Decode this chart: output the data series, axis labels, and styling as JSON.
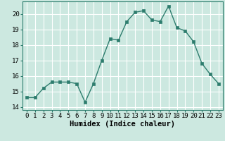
{
  "x": [
    0,
    1,
    2,
    3,
    4,
    5,
    6,
    7,
    8,
    9,
    10,
    11,
    12,
    13,
    14,
    15,
    16,
    17,
    18,
    19,
    20,
    21,
    22,
    23
  ],
  "y": [
    14.6,
    14.6,
    15.2,
    15.6,
    15.6,
    15.6,
    15.5,
    14.3,
    15.5,
    17.0,
    18.4,
    18.3,
    19.5,
    20.1,
    20.2,
    19.6,
    19.5,
    20.5,
    19.1,
    18.9,
    18.2,
    16.8,
    16.1,
    15.5
  ],
  "line_color": "#2e7d6e",
  "marker": "s",
  "markersize": 2.5,
  "linewidth": 1.0,
  "bg_color": "#cce8e0",
  "grid_color": "#ffffff",
  "xlabel": "Humidex (Indice chaleur)",
  "ylim": [
    13.8,
    20.8
  ],
  "xlim": [
    -0.5,
    23.5
  ],
  "yticks": [
    14,
    15,
    16,
    17,
    18,
    19,
    20
  ],
  "xtick_labels": [
    "0",
    "1",
    "2",
    "3",
    "4",
    "5",
    "6",
    "7",
    "8",
    "9",
    "10",
    "11",
    "12",
    "13",
    "14",
    "15",
    "16",
    "17",
    "18",
    "19",
    "20",
    "21",
    "22",
    "23"
  ],
  "tick_fontsize": 6.5,
  "xlabel_fontsize": 7.5
}
